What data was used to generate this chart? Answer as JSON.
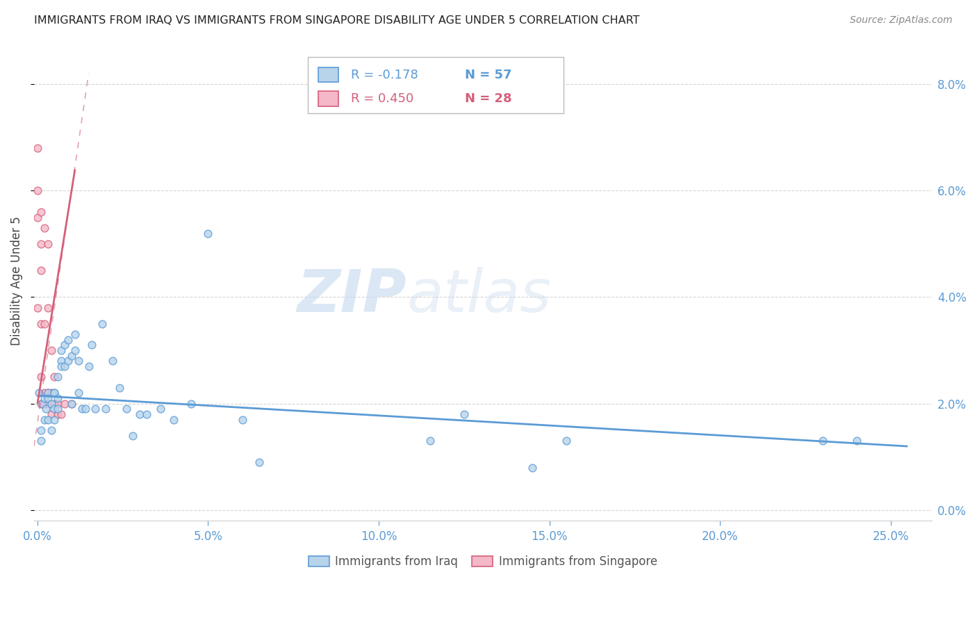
{
  "title": "IMMIGRANTS FROM IRAQ VS IMMIGRANTS FROM SINGAPORE DISABILITY AGE UNDER 5 CORRELATION CHART",
  "source": "Source: ZipAtlas.com",
  "ylabel": "Disability Age Under 5",
  "xlim": [
    -0.001,
    0.262
  ],
  "ylim": [
    -0.002,
    0.088
  ],
  "xticks": [
    0.0,
    0.05,
    0.1,
    0.15,
    0.2,
    0.25
  ],
  "yticks": [
    0.0,
    0.02,
    0.04,
    0.06,
    0.08
  ],
  "watermark_zip": "ZIP",
  "watermark_atlas": "atlas",
  "iraq_color": "#b8d4eb",
  "iraq_edge": "#5b9bd5",
  "singapore_color": "#f4b8c8",
  "singapore_edge": "#d4607a",
  "tick_color": "#5b9bd5",
  "grid_color": "#d0d0d0",
  "title_color": "#222222",
  "source_color": "#888888",
  "legend_R_iraq": "R = -0.178",
  "legend_N_iraq": "N = 57",
  "legend_R_singapore": "R = 0.450",
  "legend_N_singapore": "N = 28",
  "marker_size": 60,
  "iraq_scatter_x": [
    0.0005,
    0.001,
    0.001,
    0.0015,
    0.002,
    0.002,
    0.0025,
    0.003,
    0.003,
    0.003,
    0.004,
    0.004,
    0.005,
    0.005,
    0.005,
    0.005,
    0.006,
    0.006,
    0.006,
    0.007,
    0.007,
    0.007,
    0.008,
    0.008,
    0.009,
    0.009,
    0.01,
    0.01,
    0.011,
    0.011,
    0.012,
    0.012,
    0.013,
    0.014,
    0.015,
    0.016,
    0.017,
    0.019,
    0.02,
    0.022,
    0.024,
    0.026,
    0.028,
    0.03,
    0.032,
    0.036,
    0.04,
    0.045,
    0.05,
    0.06,
    0.065,
    0.115,
    0.125,
    0.145,
    0.155,
    0.23,
    0.24
  ],
  "iraq_scatter_y": [
    0.022,
    0.015,
    0.013,
    0.02,
    0.021,
    0.017,
    0.019,
    0.022,
    0.021,
    0.017,
    0.02,
    0.015,
    0.022,
    0.019,
    0.017,
    0.022,
    0.025,
    0.019,
    0.021,
    0.028,
    0.03,
    0.027,
    0.031,
    0.027,
    0.032,
    0.028,
    0.029,
    0.02,
    0.033,
    0.03,
    0.028,
    0.022,
    0.019,
    0.019,
    0.027,
    0.031,
    0.019,
    0.035,
    0.019,
    0.028,
    0.023,
    0.019,
    0.014,
    0.018,
    0.018,
    0.019,
    0.017,
    0.02,
    0.052,
    0.017,
    0.009,
    0.013,
    0.018,
    0.008,
    0.013,
    0.013,
    0.013
  ],
  "singapore_scatter_x": [
    0.0,
    0.0,
    0.0,
    0.0,
    0.001,
    0.001,
    0.001,
    0.001,
    0.001,
    0.001,
    0.002,
    0.002,
    0.002,
    0.002,
    0.003,
    0.003,
    0.003,
    0.003,
    0.004,
    0.004,
    0.004,
    0.005,
    0.005,
    0.006,
    0.006,
    0.007,
    0.008,
    0.01
  ],
  "singapore_scatter_y": [
    0.068,
    0.06,
    0.055,
    0.038,
    0.056,
    0.05,
    0.045,
    0.035,
    0.025,
    0.02,
    0.053,
    0.035,
    0.022,
    0.02,
    0.05,
    0.038,
    0.022,
    0.02,
    0.03,
    0.022,
    0.018,
    0.025,
    0.02,
    0.02,
    0.018,
    0.018,
    0.02,
    0.02
  ],
  "iraq_trend_x0": 0.0,
  "iraq_trend_x1": 0.255,
  "iraq_trend_y0": 0.0215,
  "iraq_trend_y1": 0.012,
  "sing_trend_solid_x0": 0.0,
  "sing_trend_solid_x1": 0.011,
  "sing_trend_solid_y0": 0.02,
  "sing_trend_solid_y1": 0.064,
  "sing_trend_dash_x0": -0.001,
  "sing_trend_dash_x1": 0.015,
  "sing_trend_dash_y0": 0.012,
  "sing_trend_dash_y1": 0.082
}
